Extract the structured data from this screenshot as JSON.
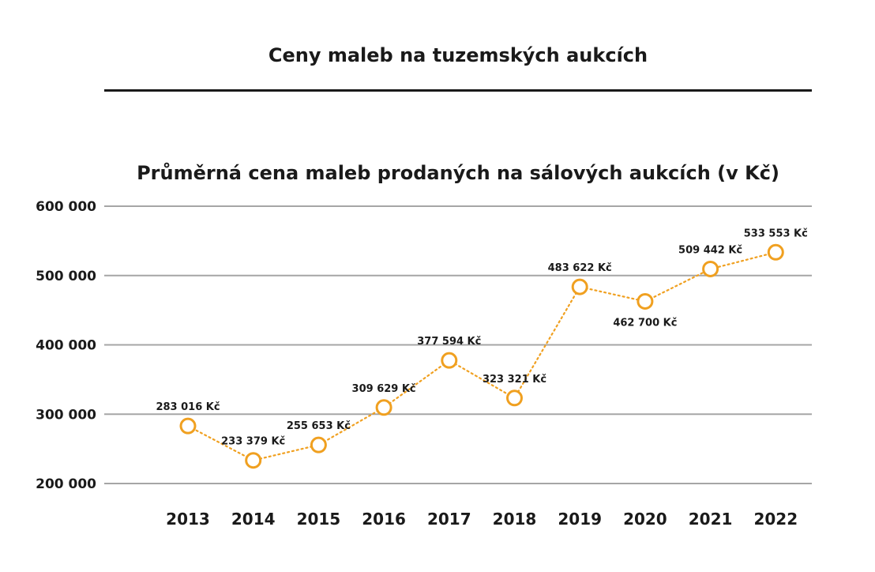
{
  "header": {
    "title": "Ceny maleb na tuzemských aukcích"
  },
  "chart_data": {
    "type": "line",
    "title": "Průměrná cena maleb prodaných na sálových aukcích (v Kč)",
    "xlabel": "",
    "ylabel": "",
    "categories": [
      "2013",
      "2014",
      "2015",
      "2016",
      "2017",
      "2018",
      "2019",
      "2020",
      "2021",
      "2022"
    ],
    "series": [
      {
        "values": [
          283016,
          233379,
          255653,
          309629,
          377594,
          323321,
          483622,
          462700,
          509442,
          533553
        ],
        "labels": [
          "283 016 Kč",
          "233 379 Kč",
          "255 653 Kč",
          "309 629 Kč",
          "377 594 Kč",
          "323 321 Kč",
          "483 622 Kč",
          "462 700 Kč",
          "509 442 Kč",
          "533 553 Kč"
        ],
        "label_positions": [
          "above",
          "above",
          "above",
          "above",
          "above",
          "above",
          "above",
          "below",
          "above",
          "above"
        ],
        "color": "#f0a020"
      }
    ],
    "ylim": [
      200000,
      600000
    ],
    "yticks": [
      200000,
      300000,
      400000,
      500000,
      600000
    ],
    "ytick_labels": [
      "200 000",
      "300 000",
      "400 000",
      "500 000",
      "600 000"
    ],
    "grid": true,
    "gridline_color": "#a6a6a6",
    "line_style": "dotted",
    "marker": "hollow-circle",
    "legend": "none"
  }
}
